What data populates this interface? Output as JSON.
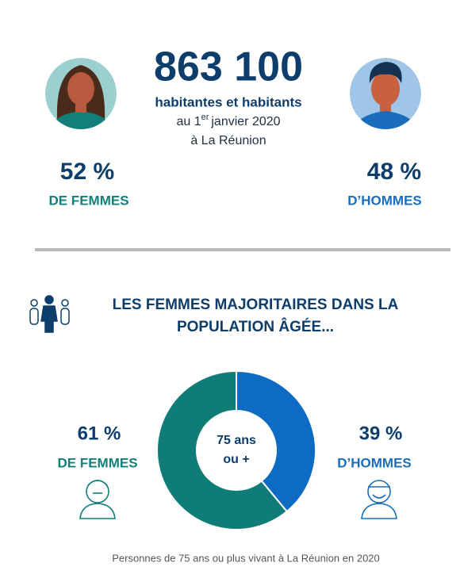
{
  "header": {
    "total": "863 100",
    "line1": "habitantes et habitants",
    "date_prefix": "au 1",
    "date_sup": "er",
    "date_suffix": "janvier 2020",
    "place": "à La Réunion"
  },
  "overall": {
    "women": {
      "value_label": "52 %",
      "label": "DE FEMMES"
    },
    "men": {
      "value_label": "48 %",
      "label": "D’HOMMES"
    }
  },
  "section": {
    "title_line1": "LES FEMMES MAJORITAIRES DANS LA",
    "title_line2": "POPULATION ÂGÉE..."
  },
  "donut": {
    "type": "pie",
    "categories": [
      "DE FEMMES",
      "D’HOMMES"
    ],
    "values": [
      61,
      39
    ],
    "value_labels": [
      "61 %",
      "39 %"
    ],
    "colors": [
      "#0f7c78",
      "#0e6bc4"
    ],
    "center_line1": "75 ans",
    "center_line2": "ou +"
  },
  "footnote": "Personnes de 75 ans ou plus vivant à La Réunion en 2020"
}
